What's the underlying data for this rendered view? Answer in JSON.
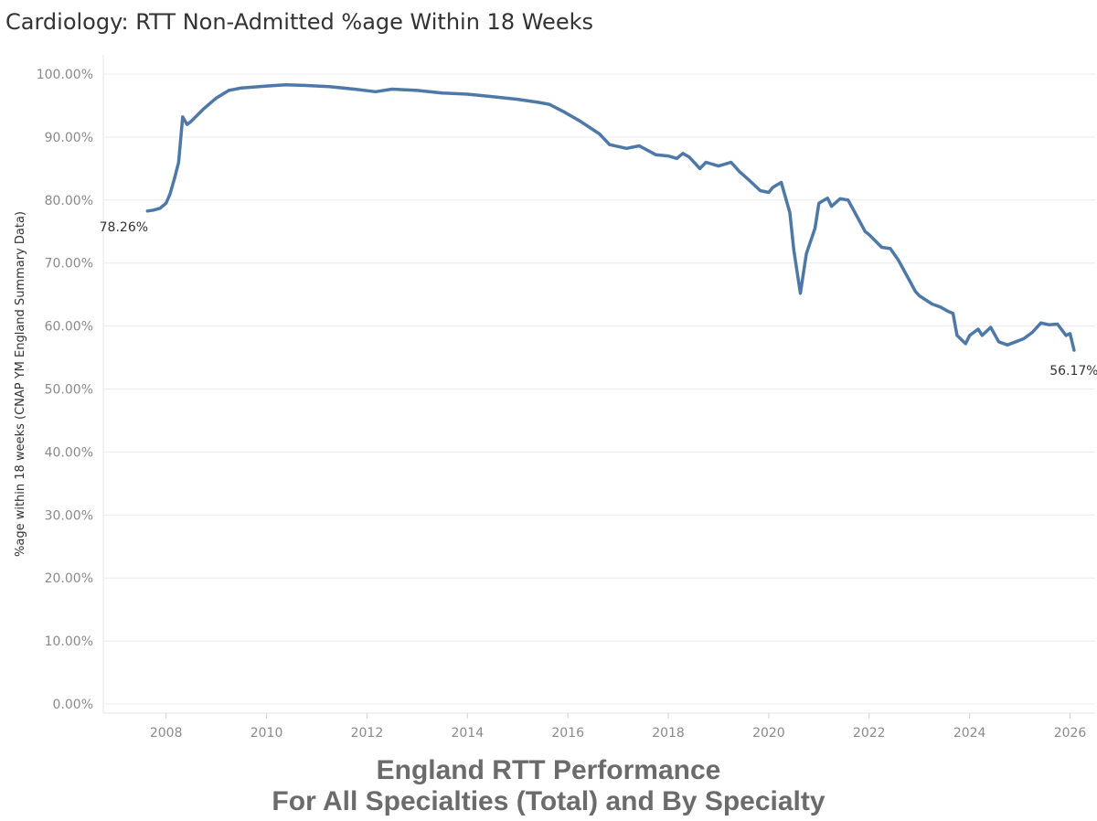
{
  "chart_data": {
    "type": "line",
    "title": "Cardiology: RTT Non-Admitted %age Within 18 Weeks",
    "ylabel": "%age within 18 weeks (CNAP YM England Summary Data)",
    "xlabel": "",
    "ylim": [
      0,
      100
    ],
    "xlim": [
      2006.75,
      2026.5
    ],
    "y_ticks": [
      {
        "value": 0,
        "label": "0.00%"
      },
      {
        "value": 10,
        "label": "10.00%"
      },
      {
        "value": 20,
        "label": "20.00%"
      },
      {
        "value": 30,
        "label": "30.00%"
      },
      {
        "value": 40,
        "label": "40.00%"
      },
      {
        "value": 50,
        "label": "50.00%"
      },
      {
        "value": 60,
        "label": "60.00%"
      },
      {
        "value": 70,
        "label": "70.00%"
      },
      {
        "value": 80,
        "label": "80.00%"
      },
      {
        "value": 90,
        "label": "90.00%"
      },
      {
        "value": 100,
        "label": "100.00%"
      }
    ],
    "x_ticks": [
      {
        "value": 2008,
        "label": "2008"
      },
      {
        "value": 2010,
        "label": "2010"
      },
      {
        "value": 2012,
        "label": "2012"
      },
      {
        "value": 2014,
        "label": "2014"
      },
      {
        "value": 2016,
        "label": "2016"
      },
      {
        "value": 2018,
        "label": "2018"
      },
      {
        "value": 2020,
        "label": "2020"
      },
      {
        "value": 2022,
        "label": "2022"
      },
      {
        "value": 2024,
        "label": "2024"
      },
      {
        "value": 2026,
        "label": "2026"
      }
    ],
    "grid": true,
    "series": [
      {
        "name": "Cardiology",
        "color": "#4e79a7",
        "x": [
          2007.63,
          2007.75,
          2007.88,
          2008.0,
          2008.08,
          2008.17,
          2008.25,
          2008.33,
          2008.42,
          2008.5,
          2008.75,
          2009.0,
          2009.25,
          2009.5,
          2010.0,
          2010.38,
          2010.75,
          2011.25,
          2011.75,
          2012.17,
          2012.5,
          2013.0,
          2013.5,
          2014.0,
          2014.5,
          2015.0,
          2015.42,
          2015.63,
          2015.92,
          2016.25,
          2016.63,
          2016.83,
          2017.17,
          2017.42,
          2017.75,
          2018.0,
          2018.17,
          2018.29,
          2018.42,
          2018.63,
          2018.75,
          2019.0,
          2019.25,
          2019.42,
          2019.63,
          2019.83,
          2020.0,
          2020.08,
          2020.25,
          2020.42,
          2020.5,
          2020.63,
          2020.75,
          2020.92,
          2021.0,
          2021.17,
          2021.25,
          2021.42,
          2021.58,
          2021.75,
          2021.92,
          2022.0,
          2022.25,
          2022.42,
          2022.58,
          2022.75,
          2022.92,
          2023.0,
          2023.25,
          2023.42,
          2023.58,
          2023.67,
          2023.75,
          2023.92,
          2024.0,
          2024.17,
          2024.25,
          2024.42,
          2024.58,
          2024.75,
          2024.92,
          2025.08,
          2025.25,
          2025.42,
          2025.58,
          2025.75,
          2025.92,
          2026.0,
          2026.08
        ],
        "values": [
          78.26,
          78.4,
          78.7,
          79.5,
          81.0,
          83.5,
          86.0,
          93.2,
          92.0,
          92.5,
          94.5,
          96.2,
          97.4,
          97.8,
          98.1,
          98.3,
          98.2,
          98.0,
          97.6,
          97.2,
          97.6,
          97.4,
          97.0,
          96.8,
          96.4,
          96.0,
          95.5,
          95.2,
          94.0,
          92.5,
          90.5,
          88.8,
          88.2,
          88.6,
          87.2,
          87.0,
          86.6,
          87.4,
          86.8,
          85.0,
          86.0,
          85.4,
          86.0,
          84.5,
          83.0,
          81.5,
          81.2,
          82.0,
          82.8,
          78.0,
          72.0,
          65.2,
          71.5,
          75.5,
          79.5,
          80.3,
          79.0,
          80.2,
          80.0,
          77.5,
          75.0,
          74.5,
          72.5,
          72.3,
          70.5,
          68.0,
          65.5,
          64.8,
          63.5,
          63.0,
          62.3,
          62.0,
          58.5,
          57.2,
          58.5,
          59.5,
          58.5,
          59.8,
          57.5,
          57.0,
          57.5,
          58.0,
          59.0,
          60.5,
          60.2,
          60.3,
          58.5,
          58.8,
          56.17
        ]
      }
    ],
    "annotations": [
      {
        "label": "78.26%",
        "x": 2007.63,
        "y": 78.26,
        "anchor": "below-left"
      },
      {
        "label": "56.17%",
        "x": 2026.08,
        "y": 56.17,
        "anchor": "below"
      }
    ]
  },
  "footer": {
    "line1": "England RTT Performance",
    "line2": "For All Specialties (Total) and By Specialty"
  }
}
